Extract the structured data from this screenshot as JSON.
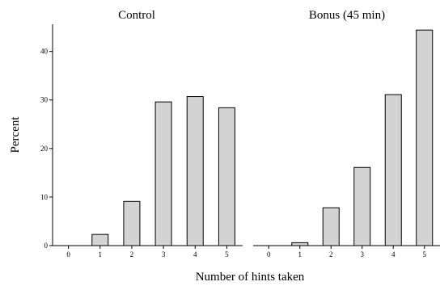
{
  "chart_data": [
    {
      "type": "bar",
      "title": "Control",
      "categories": [
        "0",
        "1",
        "2",
        "3",
        "4",
        "5"
      ],
      "values": [
        0,
        2.3,
        9.1,
        29.6,
        30.7,
        28.4
      ],
      "ylim": [
        0,
        45.6
      ],
      "yticks": [
        0,
        10,
        20,
        30,
        40
      ]
    },
    {
      "type": "bar",
      "title": "Bonus (45 min)",
      "categories": [
        "0",
        "1",
        "2",
        "3",
        "4",
        "5"
      ],
      "values": [
        0,
        0.6,
        7.8,
        16.1,
        31.1,
        44.4
      ],
      "ylim": [
        0,
        45.6
      ],
      "yticks": [
        0,
        10,
        20,
        30,
        40
      ]
    }
  ],
  "shared": {
    "xlabel": "Number of hints taken",
    "ylabel": "Percent"
  },
  "colors": {
    "bar_fill": "#d3d3d3",
    "bar_stroke": "#000000",
    "axis": "#000000"
  }
}
